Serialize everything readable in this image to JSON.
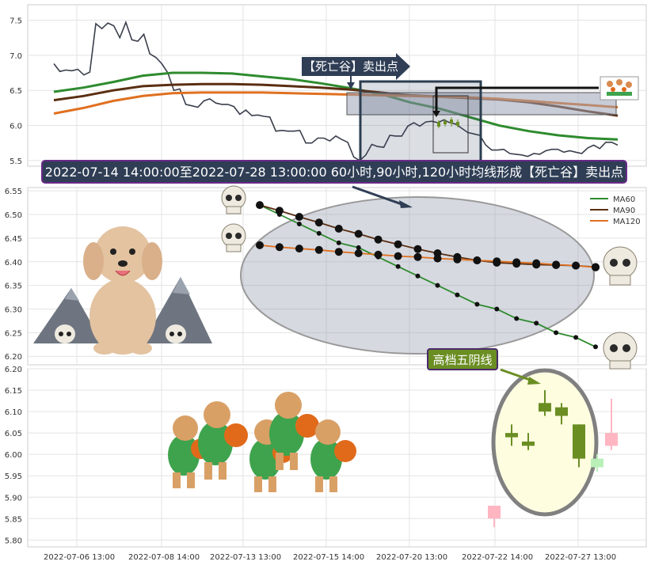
{
  "chart_data": [
    {
      "type": "line",
      "panel": "top",
      "x_tick_labels": [
        "2022-07-06 13:00",
        "2022-07-08 14:00",
        "2022-07-13 13:00",
        "2022-07-15 14:00",
        "2022-07-20 13:00",
        "2022-07-22 14:00",
        "2022-07-27 13:00"
      ],
      "y_ticks": [
        5.5,
        6.0,
        6.5,
        7.0,
        7.5
      ],
      "ylim": [
        5.42,
        7.72
      ],
      "series": [
        {
          "name": "close",
          "color": "#3a3f4b",
          "values": [
            6.88,
            6.77,
            6.79,
            6.78,
            6.8,
            6.72,
            6.76,
            7.45,
            7.38,
            7.46,
            7.42,
            7.25,
            7.47,
            7.22,
            7.2,
            7.3,
            7.02,
            6.97,
            6.88,
            6.75,
            6.5,
            6.52,
            6.3,
            6.28,
            6.26,
            6.35,
            6.38,
            6.32,
            6.3,
            6.3,
            6.27,
            6.16,
            6.22,
            6.14,
            6.15,
            6.13,
            6.12,
            5.92,
            5.93,
            5.92,
            5.92,
            5.93,
            5.75,
            5.75,
            5.82,
            5.82,
            5.78,
            5.85,
            5.8,
            5.76,
            5.55,
            5.5,
            5.58,
            5.73,
            5.7,
            5.69,
            5.86,
            5.85,
            5.85,
            5.99,
            6.04,
            5.99,
            6.05,
            6.06,
            6.04,
            6.08,
            6.04,
            6.02,
            5.96,
            5.9,
            5.88,
            5.86,
            5.72,
            5.65,
            5.65,
            5.66,
            5.6,
            5.59,
            5.58,
            5.56,
            5.6,
            5.59,
            5.64,
            5.66,
            5.66,
            5.62,
            5.64,
            5.62,
            5.6,
            5.68,
            5.72,
            5.67,
            5.76,
            5.76,
            5.72
          ]
        },
        {
          "name": "MA60",
          "color": "#2e8b2e",
          "values": [
            6.48,
            6.54,
            6.62,
            6.71,
            6.75,
            6.75,
            6.74,
            6.7,
            6.66,
            6.6,
            6.53,
            6.45,
            6.33,
            6.24,
            6.12,
            6.0,
            5.92,
            5.86,
            5.82,
            5.8
          ]
        },
        {
          "name": "MA90",
          "color": "#5a2e12",
          "values": [
            6.36,
            6.42,
            6.5,
            6.56,
            6.58,
            6.59,
            6.59,
            6.58,
            6.56,
            6.54,
            6.51,
            6.47,
            6.43,
            6.41,
            6.39,
            6.37,
            6.33,
            6.27,
            6.2,
            6.14
          ]
        },
        {
          "name": "MA120",
          "color": "#e07020",
          "values": [
            6.17,
            6.25,
            6.35,
            6.42,
            6.46,
            6.47,
            6.47,
            6.47,
            6.46,
            6.45,
            6.44,
            6.43,
            6.42,
            6.41,
            6.4,
            6.38,
            6.35,
            6.32,
            6.29,
            6.26
          ]
        }
      ],
      "annotation_label": "【死亡谷】卖出点",
      "title_banner": "2022-07-14 14:00:00至2022-07-28 13:00:00 60小时,90小时,120小时均线形成【死亡谷】卖出点"
    },
    {
      "type": "line",
      "panel": "middle",
      "y_ticks": [
        6.2,
        6.25,
        6.3,
        6.35,
        6.4,
        6.45,
        6.5,
        6.55
      ],
      "ylim": [
        6.182,
        6.557
      ],
      "legend": [
        "MA60",
        "MA90",
        "MA120"
      ],
      "legend_position": "top-right",
      "series": [
        {
          "name": "MA60",
          "color": "#2e8b2e",
          "values": [
            6.52,
            6.5,
            6.48,
            6.46,
            6.44,
            6.43,
            6.41,
            6.39,
            6.37,
            6.35,
            6.33,
            6.31,
            6.3,
            6.28,
            6.27,
            6.25,
            6.24,
            6.22
          ]
        },
        {
          "name": "MA90",
          "color": "#5a2e12",
          "values": [
            6.52,
            6.508,
            6.495,
            6.483,
            6.47,
            6.459,
            6.447,
            6.437,
            6.427,
            6.418,
            6.41,
            6.403,
            6.398,
            6.396,
            6.394,
            6.393,
            6.392,
            6.389
          ]
        },
        {
          "name": "MA120",
          "color": "#e07020",
          "values": [
            6.435,
            6.431,
            6.428,
            6.425,
            6.421,
            6.418,
            6.415,
            6.412,
            6.41,
            6.407,
            6.405,
            6.403,
            6.401,
            6.399,
            6.397,
            6.394,
            6.392,
            6.388
          ]
        }
      ]
    },
    {
      "type": "candlestick",
      "panel": "bottom",
      "y_ticks": [
        5.8,
        5.85,
        5.9,
        5.95,
        6.0,
        6.05,
        6.1,
        6.15,
        6.2
      ],
      "ylim": [
        5.784,
        6.2
      ],
      "annotation_label": "高档五阴线",
      "candles": [
        {
          "open": 5.85,
          "close": 5.88,
          "high": 5.88,
          "low": 5.83,
          "color": "#ffb6c1"
        },
        {
          "open": 6.04,
          "close": 6.05,
          "high": 6.07,
          "low": 6.02,
          "color": "#6b8e23"
        },
        {
          "open": 6.03,
          "close": 6.02,
          "high": 6.05,
          "low": 6.01,
          "color": "#6b8e23"
        },
        {
          "open": 6.12,
          "close": 6.1,
          "high": 6.15,
          "low": 6.09,
          "color": "#6b8e23"
        },
        {
          "open": 6.11,
          "close": 6.09,
          "high": 6.12,
          "low": 6.07,
          "color": "#6b8e23"
        },
        {
          "open": 6.07,
          "close": 5.99,
          "high": 6.07,
          "low": 5.97,
          "color": "#6b8e23"
        },
        {
          "open": 5.97,
          "close": 5.99,
          "high": 6.0,
          "low": 5.96,
          "color": "#b8f0b8"
        },
        {
          "open": 6.02,
          "close": 6.05,
          "high": 6.13,
          "low": 6.01,
          "color": "#ffb6c1"
        }
      ]
    }
  ]
}
